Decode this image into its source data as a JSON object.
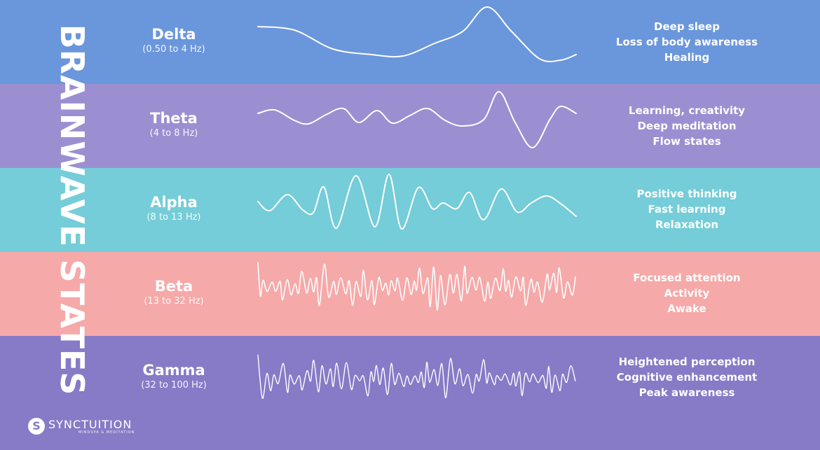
{
  "title": "BRAINWAVE STATES",
  "bands": [
    {
      "name": "Delta",
      "freq": "(0.50 to 4 Hz)",
      "lines": [
        "Deep sleep",
        "Loss of body awareness",
        "Healing"
      ],
      "color": "#6a96dc"
    },
    {
      "name": "Theta",
      "freq": "(4 to 8 Hz)",
      "lines": [
        "Learning, creativity",
        "Deep meditation",
        "Flow states"
      ],
      "color": "#9b8fd1"
    },
    {
      "name": "Alpha",
      "freq": "(8 to 13 Hz)",
      "lines": [
        "Positive thinking",
        "Fast learning",
        "Relaxation"
      ],
      "color": "#74cdd8"
    },
    {
      "name": "Beta",
      "freq": "(13 to 32 Hz)",
      "lines": [
        "Focused attention",
        "Activity",
        "Awake"
      ],
      "color": "#f5a9a9"
    },
    {
      "name": "Gamma",
      "freq": "(32 to 100 Hz)",
      "lines": [
        "Heightened perception",
        "Cognitive enhancement",
        "Peak awareness"
      ],
      "color": "#877ac6"
    }
  ],
  "logo": {
    "name": "SYNCTUITION",
    "tagline": "MINDSPA & MEDITATION",
    "icon": "logo-s-icon"
  }
}
